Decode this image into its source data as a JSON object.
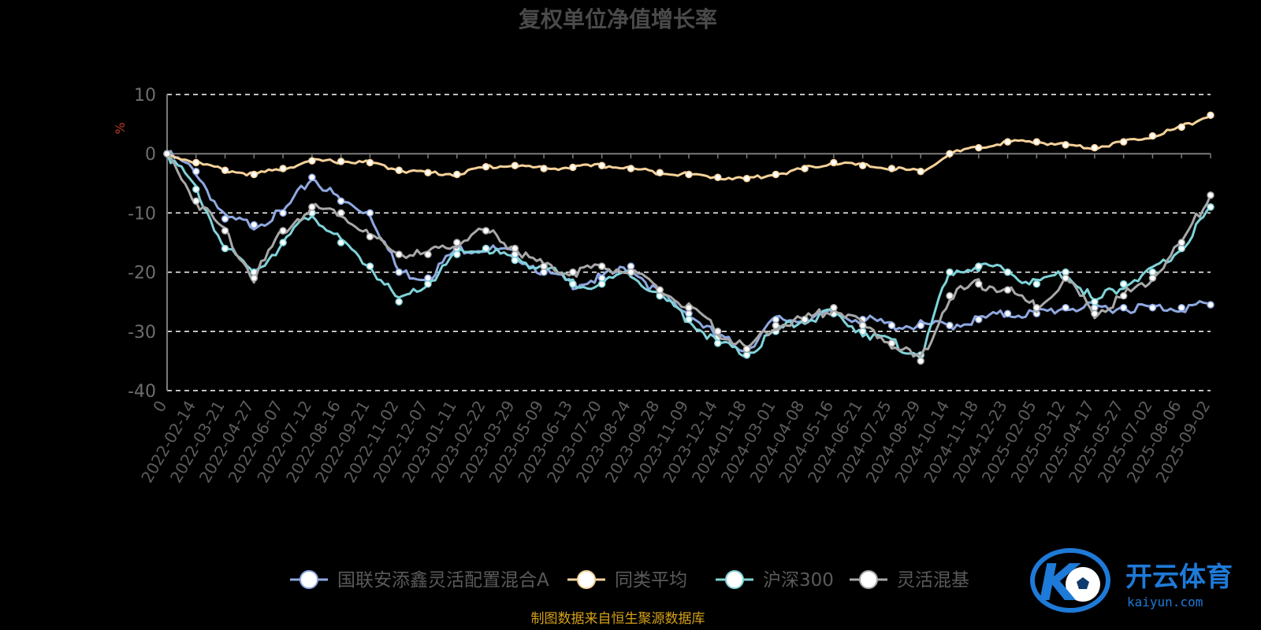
{
  "chart_data": {
    "type": "line",
    "title": "复权单位净值增长率",
    "ylabel": "%",
    "ylim": [
      -40,
      10
    ],
    "yticks": [
      -40,
      -30,
      -20,
      -10,
      0,
      10
    ],
    "grid": true,
    "legend_position": "bottom",
    "x": [
      "0",
      "2022-02-14",
      "2022-03-21",
      "2022-04-27",
      "2022-06-07",
      "2022-07-12",
      "2022-08-16",
      "2022-09-21",
      "2022-11-02",
      "2022-12-07",
      "2023-01-11",
      "2023-02-22",
      "2023-03-29",
      "2023-05-09",
      "2023-06-13",
      "2023-07-20",
      "2023-08-24",
      "2023-09-28",
      "2023-11-09",
      "2023-12-14",
      "2024-01-18",
      "2024-03-01",
      "2024-04-08",
      "2024-05-16",
      "2024-06-21",
      "2024-07-25",
      "2024-08-29",
      "2024-10-14",
      "2024-11-18",
      "2024-12-23",
      "2025-02-05",
      "2025-03-12",
      "2025-04-17",
      "2025-05-27",
      "2025-07-02",
      "2025-08-06",
      "2025-09-02"
    ],
    "series": [
      {
        "name": "国联安添鑫灵活配置混合A",
        "color": "#8fa8e0",
        "values": [
          0,
          -3,
          -11,
          -12,
          -10,
          -4,
          -8,
          -10,
          -20,
          -21,
          -16,
          -16,
          -17,
          -20,
          -22,
          -21,
          -19,
          -24,
          -27,
          -31,
          -33,
          -28,
          -28,
          -27,
          -28,
          -29,
          -29,
          -29,
          -28,
          -27,
          -27,
          -26,
          -26,
          -26,
          -26,
          -26,
          -25.5
        ]
      },
      {
        "name": "同类平均",
        "color": "#f5d29a",
        "values": [
          0,
          -1.5,
          -2.8,
          -3.5,
          -2.5,
          -1.2,
          -1.3,
          -1.5,
          -2.8,
          -3.2,
          -3.5,
          -2.2,
          -2.0,
          -2.5,
          -2.3,
          -2.0,
          -2.5,
          -3.2,
          -3.5,
          -4.0,
          -4.2,
          -3.5,
          -2.5,
          -1.5,
          -2.0,
          -2.5,
          -3.0,
          0,
          1,
          2,
          2,
          1.5,
          1.0,
          2.0,
          3.0,
          4.5,
          6.5
        ]
      },
      {
        "name": "沪深300",
        "color": "#7fd3d9",
        "values": [
          0,
          -6,
          -16,
          -20,
          -15,
          -10,
          -15,
          -19,
          -25,
          -22,
          -17,
          -16,
          -18,
          -19,
          -22,
          -22,
          -20,
          -24,
          -28,
          -32,
          -34,
          -30,
          -28,
          -27,
          -30,
          -32,
          -34,
          -20,
          -19,
          -20,
          -22,
          -20,
          -25,
          -22,
          -20,
          -16,
          -9
        ]
      },
      {
        "name": "灵活混基",
        "color": "#a8a8a8",
        "values": [
          0,
          -8,
          -13,
          -21,
          -13,
          -9,
          -10,
          -14,
          -17,
          -17,
          -15,
          -13,
          -16,
          -19,
          -20,
          -19,
          -20,
          -23,
          -26,
          -30,
          -33,
          -29,
          -28,
          -26,
          -29,
          -32,
          -35,
          -24,
          -22,
          -23,
          -26,
          -21,
          -27,
          -24,
          -21,
          -15,
          -7
        ]
      }
    ]
  },
  "source_note": "制图数据来自恒生聚源数据库",
  "logo": {
    "cn": "开云体育",
    "en": "kaiyun.com",
    "mark": "K"
  }
}
